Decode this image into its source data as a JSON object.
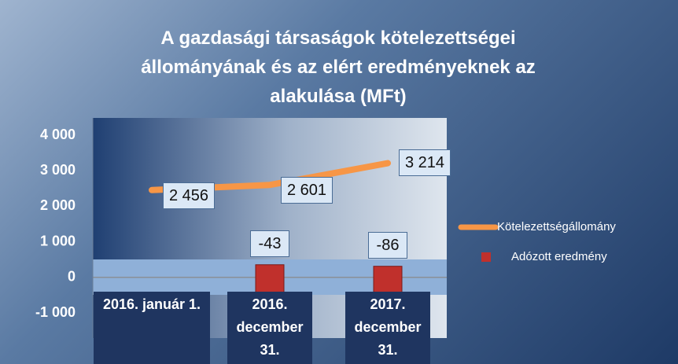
{
  "chart_data": {
    "type": "line_marker",
    "title": "A gazdasági társaságok kötelezettségei állományának és az elért eredményeknek az alakulása (MFt)",
    "categories": [
      "2016. január 1.",
      "2016. december 31.",
      "2017. december 31."
    ],
    "series": [
      {
        "name": "Kötelezettségállomány",
        "type": "line",
        "color": "#f79646",
        "values": [
          2456,
          2601,
          3214
        ],
        "value_labels": [
          "2 456",
          "2 601",
          "3 214"
        ]
      },
      {
        "name": "Adózott eredmény",
        "type": "marker",
        "color": "#c0302c",
        "values": [
          null,
          -43,
          -86
        ]
      }
    ],
    "ylim": [
      -1000,
      4000
    ],
    "yticks": [
      {
        "value": -1000,
        "label": "-1 000"
      },
      0,
      {
        "value": 1000,
        "label": "1 000"
      },
      {
        "value": 2000,
        "label": "2 000"
      },
      {
        "value": 3000,
        "label": "3 000"
      },
      {
        "value": 4000,
        "label": "4 000"
      }
    ],
    "grid": false,
    "legend": "right"
  }
}
